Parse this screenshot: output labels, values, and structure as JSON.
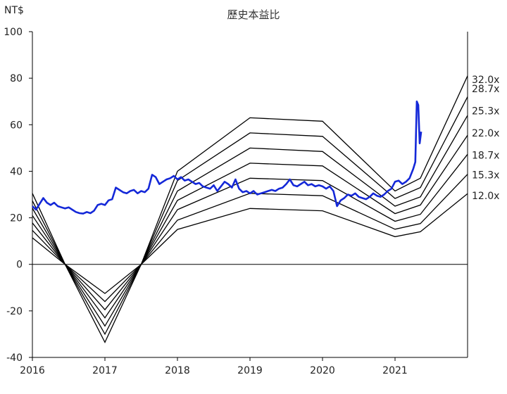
{
  "chart_data": {
    "type": "line",
    "title": "歷史本益比",
    "unit_label": "NT$",
    "ylim": [
      -40,
      100
    ],
    "y_ticks": [
      -40,
      -20,
      0,
      20,
      40,
      60,
      80,
      100
    ],
    "x_ticks": [
      "2016",
      "2017",
      "2018",
      "2019",
      "2020",
      "2021"
    ],
    "x_tick_values": [
      2016.0,
      2017.0,
      2018.0,
      2019.0,
      2020.0,
      2021.0
    ],
    "xlim": [
      2016.0,
      2022.0
    ],
    "grid": false,
    "colors": {
      "band": "#000000",
      "price": "#1428d8",
      "axis": "#000000"
    },
    "pe_bands": [
      {
        "label": "32.0x",
        "points": [
          [
            2016.0,
            30.5
          ],
          [
            2016.45,
            0
          ],
          [
            2017.0,
            -33.5
          ],
          [
            2017.5,
            0
          ],
          [
            2018.0,
            40
          ],
          [
            2019.0,
            63
          ],
          [
            2020.0,
            61.5
          ],
          [
            2021.0,
            31.5
          ],
          [
            2021.35,
            37
          ],
          [
            2022.0,
            81
          ]
        ]
      },
      {
        "label": "28.7x",
        "points": [
          [
            2016.0,
            27.3
          ],
          [
            2016.45,
            0
          ],
          [
            2017.0,
            -30
          ],
          [
            2017.5,
            0
          ],
          [
            2018.0,
            36
          ],
          [
            2019.0,
            56.5
          ],
          [
            2020.0,
            55
          ],
          [
            2021.0,
            28.3
          ],
          [
            2021.35,
            33
          ],
          [
            2022.0,
            72
          ]
        ]
      },
      {
        "label": "25.3x",
        "points": [
          [
            2016.0,
            24.1
          ],
          [
            2016.45,
            0
          ],
          [
            2017.0,
            -26.5
          ],
          [
            2017.5,
            0
          ],
          [
            2018.0,
            31.5
          ],
          [
            2019.0,
            50
          ],
          [
            2020.0,
            48.5
          ],
          [
            2021.0,
            25
          ],
          [
            2021.35,
            29
          ],
          [
            2022.0,
            64
          ]
        ]
      },
      {
        "label": "22.0x",
        "points": [
          [
            2016.0,
            21
          ],
          [
            2016.45,
            0
          ],
          [
            2017.0,
            -23
          ],
          [
            2017.5,
            0
          ],
          [
            2018.0,
            27.5
          ],
          [
            2019.0,
            43.5
          ],
          [
            2020.0,
            42.3
          ],
          [
            2021.0,
            21.8
          ],
          [
            2021.35,
            25.5
          ],
          [
            2022.0,
            55.5
          ]
        ]
      },
      {
        "label": "18.7x",
        "points": [
          [
            2016.0,
            17.8
          ],
          [
            2016.45,
            0
          ],
          [
            2017.0,
            -19.5
          ],
          [
            2017.5,
            0
          ],
          [
            2018.0,
            23.5
          ],
          [
            2019.0,
            37
          ],
          [
            2020.0,
            36
          ],
          [
            2021.0,
            18.5
          ],
          [
            2021.35,
            21.5
          ],
          [
            2022.0,
            47.3
          ]
        ]
      },
      {
        "label": "15.3x",
        "points": [
          [
            2016.0,
            14.6
          ],
          [
            2016.45,
            0
          ],
          [
            2017.0,
            -16
          ],
          [
            2017.5,
            0
          ],
          [
            2018.0,
            19
          ],
          [
            2019.0,
            30.5
          ],
          [
            2020.0,
            29.5
          ],
          [
            2021.0,
            15.1
          ],
          [
            2021.35,
            17.5
          ],
          [
            2022.0,
            38.7
          ]
        ]
      },
      {
        "label": "12.0x",
        "points": [
          [
            2016.0,
            11.4
          ],
          [
            2016.45,
            0
          ],
          [
            2017.0,
            -12.5
          ],
          [
            2017.5,
            0
          ],
          [
            2018.0,
            15
          ],
          [
            2019.0,
            24
          ],
          [
            2020.0,
            23
          ],
          [
            2021.0,
            11.9
          ],
          [
            2021.35,
            14
          ],
          [
            2022.0,
            30.4
          ]
        ]
      }
    ],
    "price_series": {
      "points": [
        [
          2016.0,
          25
        ],
        [
          2016.05,
          23.5
        ],
        [
          2016.1,
          26
        ],
        [
          2016.15,
          28.5
        ],
        [
          2016.2,
          26.5
        ],
        [
          2016.25,
          25.5
        ],
        [
          2016.3,
          26.5
        ],
        [
          2016.35,
          25
        ],
        [
          2016.4,
          24.5
        ],
        [
          2016.45,
          24
        ],
        [
          2016.5,
          24.5
        ],
        [
          2016.55,
          23.5
        ],
        [
          2016.6,
          22.5
        ],
        [
          2016.65,
          22
        ],
        [
          2016.7,
          21.8
        ],
        [
          2016.75,
          22.5
        ],
        [
          2016.8,
          22
        ],
        [
          2016.85,
          23
        ],
        [
          2016.9,
          25.5
        ],
        [
          2016.95,
          26
        ],
        [
          2017.0,
          25.5
        ],
        [
          2017.05,
          27.5
        ],
        [
          2017.1,
          28
        ],
        [
          2017.15,
          33
        ],
        [
          2017.2,
          32
        ],
        [
          2017.25,
          31
        ],
        [
          2017.3,
          30.5
        ],
        [
          2017.35,
          31.5
        ],
        [
          2017.4,
          32
        ],
        [
          2017.45,
          30.5
        ],
        [
          2017.5,
          31.5
        ],
        [
          2017.55,
          31
        ],
        [
          2017.6,
          32.5
        ],
        [
          2017.65,
          38.5
        ],
        [
          2017.7,
          37.5
        ],
        [
          2017.75,
          34.5
        ],
        [
          2017.8,
          35.5
        ],
        [
          2017.85,
          36.5
        ],
        [
          2017.9,
          37
        ],
        [
          2017.95,
          38
        ],
        [
          2018.0,
          36.5
        ],
        [
          2018.05,
          37.5
        ],
        [
          2018.1,
          36
        ],
        [
          2018.15,
          36.5
        ],
        [
          2018.2,
          35.5
        ],
        [
          2018.25,
          34.5
        ],
        [
          2018.3,
          35
        ],
        [
          2018.35,
          33.5
        ],
        [
          2018.4,
          33
        ],
        [
          2018.45,
          32.5
        ],
        [
          2018.5,
          34
        ],
        [
          2018.55,
          31.5
        ],
        [
          2018.6,
          33.5
        ],
        [
          2018.65,
          35.5
        ],
        [
          2018.7,
          34.5
        ],
        [
          2018.75,
          33
        ],
        [
          2018.8,
          36.5
        ],
        [
          2018.85,
          32.5
        ],
        [
          2018.9,
          31
        ],
        [
          2018.95,
          31.5
        ],
        [
          2019.0,
          30.5
        ],
        [
          2019.05,
          31.5
        ],
        [
          2019.1,
          30
        ],
        [
          2019.15,
          30.5
        ],
        [
          2019.2,
          31
        ],
        [
          2019.25,
          31.5
        ],
        [
          2019.3,
          32
        ],
        [
          2019.35,
          31.5
        ],
        [
          2019.4,
          32.5
        ],
        [
          2019.45,
          33
        ],
        [
          2019.5,
          34.5
        ],
        [
          2019.55,
          36.5
        ],
        [
          2019.6,
          34
        ],
        [
          2019.65,
          33.5
        ],
        [
          2019.7,
          34.5
        ],
        [
          2019.75,
          35.5
        ],
        [
          2019.8,
          34
        ],
        [
          2019.85,
          34.5
        ],
        [
          2019.9,
          33.5
        ],
        [
          2019.95,
          34
        ],
        [
          2020.0,
          33.5
        ],
        [
          2020.05,
          32.5
        ],
        [
          2020.1,
          33.5
        ],
        [
          2020.15,
          31.5
        ],
        [
          2020.2,
          25
        ],
        [
          2020.25,
          27.5
        ],
        [
          2020.3,
          28.5
        ],
        [
          2020.35,
          30
        ],
        [
          2020.4,
          29.5
        ],
        [
          2020.45,
          30.5
        ],
        [
          2020.5,
          29
        ],
        [
          2020.55,
          28.5
        ],
        [
          2020.6,
          28
        ],
        [
          2020.65,
          29
        ],
        [
          2020.7,
          30.5
        ],
        [
          2020.75,
          29.5
        ],
        [
          2020.8,
          29
        ],
        [
          2020.85,
          30
        ],
        [
          2020.9,
          31.5
        ],
        [
          2020.95,
          32.5
        ],
        [
          2021.0,
          35.5
        ],
        [
          2021.05,
          36
        ],
        [
          2021.1,
          34.5
        ],
        [
          2021.15,
          35.5
        ],
        [
          2021.2,
          37
        ],
        [
          2021.25,
          41
        ],
        [
          2021.28,
          44
        ],
        [
          2021.3,
          70
        ],
        [
          2021.32,
          68.5
        ],
        [
          2021.34,
          52
        ],
        [
          2021.36,
          57
        ]
      ]
    },
    "series_label_values": [
      79.5,
      75.5,
      66,
      56.5,
      47,
      38.5,
      29.5
    ]
  }
}
